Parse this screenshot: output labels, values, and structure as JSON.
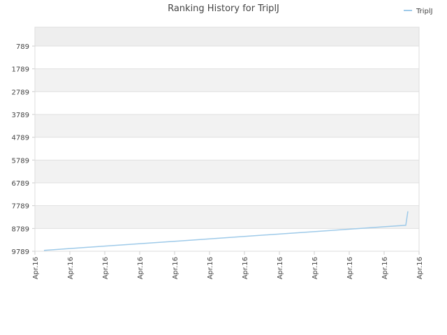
{
  "chart_data": {
    "type": "line",
    "title": "Ranking History for TriplJ",
    "x": [
      0.26,
      2,
      4,
      6,
      8,
      10,
      10.62,
      10.68
    ],
    "series": [
      {
        "name": "TriplJ",
        "color": "#9ecae9",
        "values": [
          9749,
          9564,
          9352,
          9139,
          8927,
          8715,
          8649,
          8037
        ]
      }
    ],
    "xlim": [
      0,
      11
    ],
    "xticks": [
      {
        "value": 0,
        "label": "Apr.16"
      },
      {
        "value": 1,
        "label": "Apr.16"
      },
      {
        "value": 2,
        "label": "Apr.16"
      },
      {
        "value": 3,
        "label": "Apr.16"
      },
      {
        "value": 4,
        "label": "Apr.16"
      },
      {
        "value": 5,
        "label": "Apr.16"
      },
      {
        "value": 6,
        "label": "Apr.16"
      },
      {
        "value": 7,
        "label": "Apr.16"
      },
      {
        "value": 8,
        "label": "Apr.16"
      },
      {
        "value": 9,
        "label": "Apr.16"
      },
      {
        "value": 10,
        "label": "Apr.16"
      },
      {
        "value": 11,
        "label": "Apr.16"
      }
    ],
    "ylim": [
      9789,
      -37
    ],
    "yticks": [
      789,
      1789,
      2789,
      3789,
      4789,
      5789,
      6789,
      7789,
      8789,
      9789
    ],
    "grid": true,
    "legend": "top-right"
  }
}
